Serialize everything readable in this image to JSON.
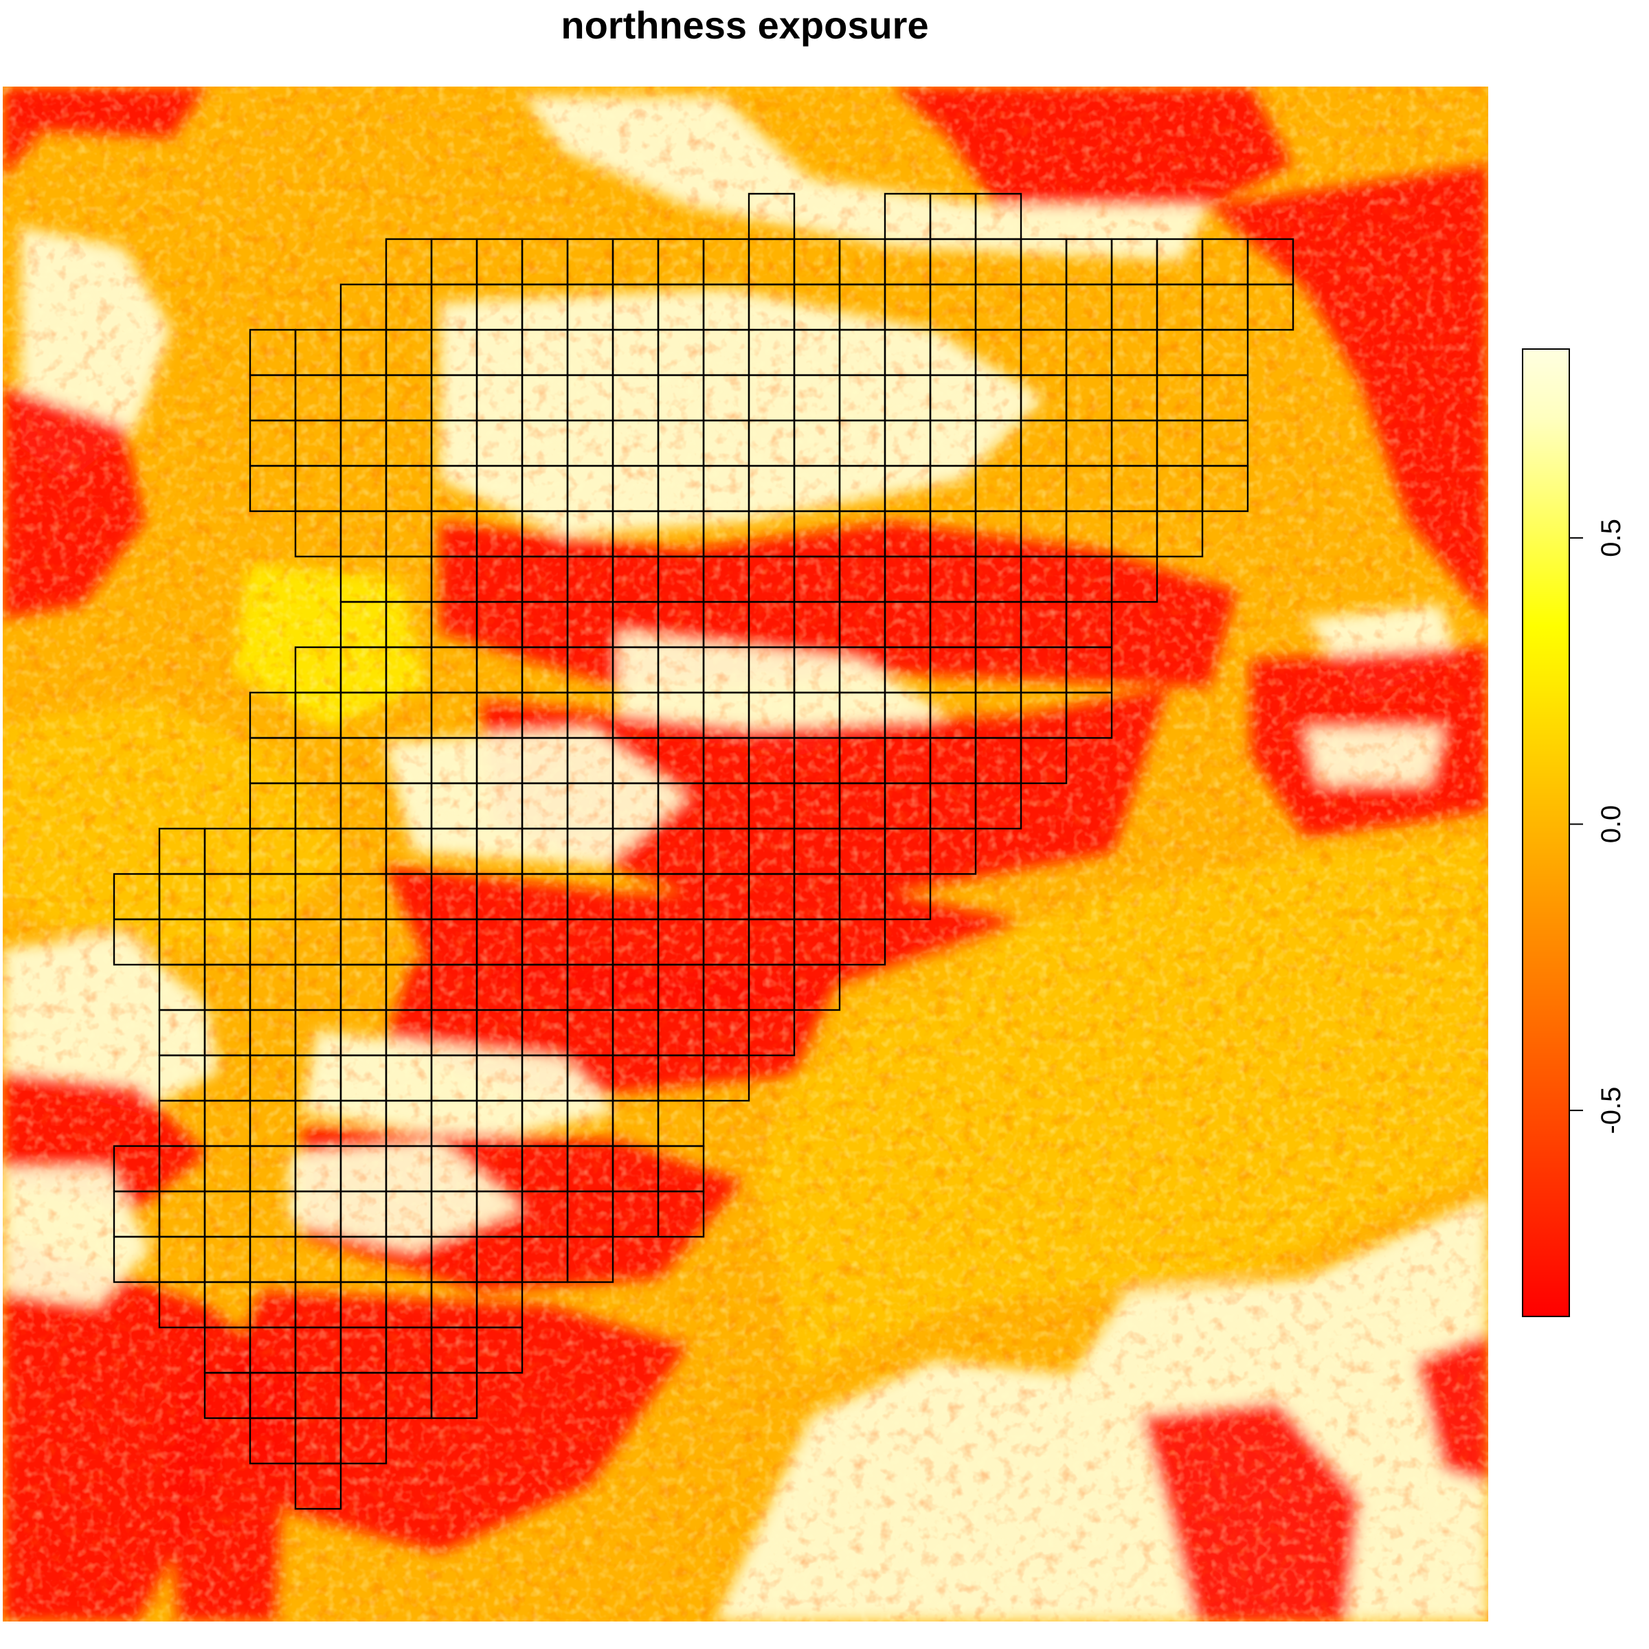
{
  "title": "northness exposure",
  "legend": {
    "ticks": [
      {
        "value": 0.5,
        "label": "0.5"
      },
      {
        "value": 0.0,
        "label": "0.0"
      },
      {
        "value": -0.5,
        "label": "-0.5"
      }
    ],
    "range": [
      -0.86,
      0.83
    ],
    "colors": [
      "#ff0000",
      "#ff1a00",
      "#ff3300",
      "#ff4d00",
      "#ff6600",
      "#ff8000",
      "#ff9900",
      "#ffb300",
      "#ffcc00",
      "#ffe600",
      "#ffff00",
      "#ffff40",
      "#ffff80",
      "#ffffbf",
      "#ffffe0"
    ]
  },
  "map": {
    "colors": {
      "red": "#ff1200",
      "orange": "#ff9a00",
      "amber": "#ffc400",
      "yellow": "#ffe800",
      "cream": "#fffbd0"
    }
  }
}
